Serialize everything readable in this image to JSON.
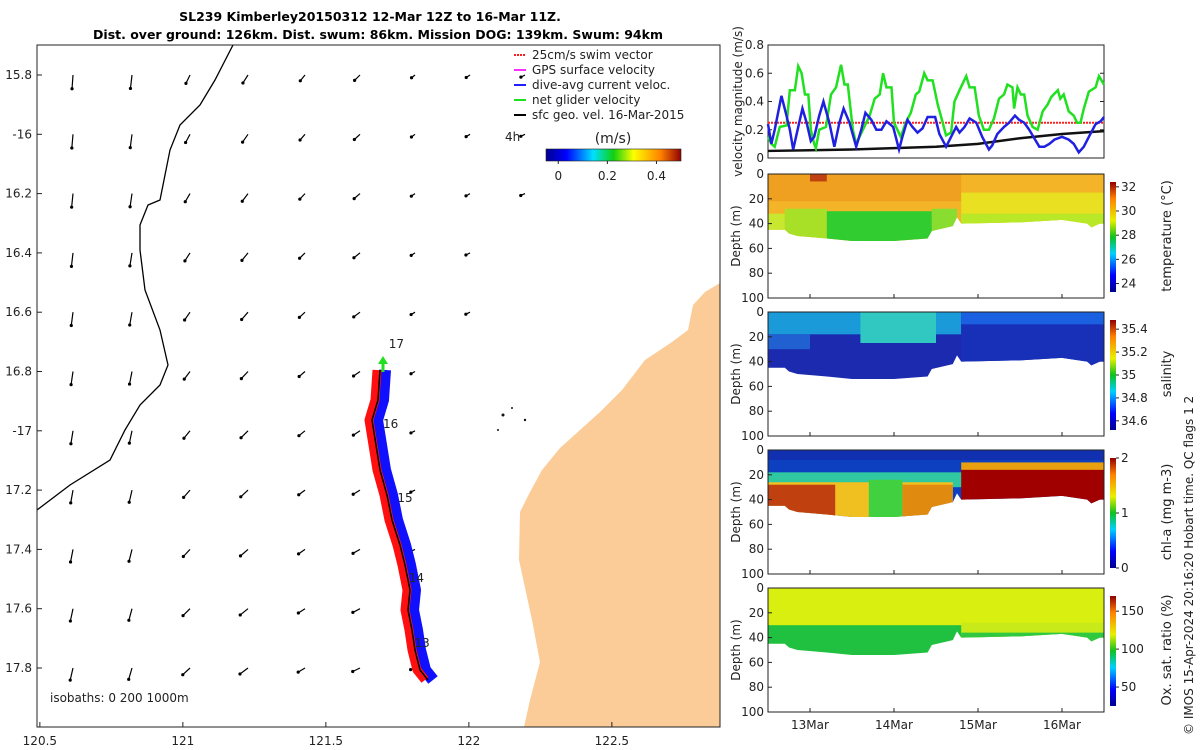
{
  "title": {
    "line1": "SL239 Kimberley20150312 12-Mar 12Z to 16-Mar 11Z.",
    "line2": "Dist. over ground: 126km. Dist. swum: 86km. Mission DOG: 139km. Swum: 94km"
  },
  "map": {
    "lon_ticks": [
      "120.5",
      "121",
      "121.5",
      "122",
      "122.5"
    ],
    "lon_values": [
      120.5,
      121,
      121.5,
      122,
      122.5
    ],
    "lat_ticks": [
      "15.8",
      "-16",
      "16.2",
      "16.4",
      "16.6",
      "16.8",
      "-17",
      "17.2",
      "17.4",
      "17.6",
      "17.8"
    ],
    "lat_values": [
      -15.8,
      -16,
      -16.2,
      -16.4,
      -16.6,
      -16.8,
      -17,
      -17.2,
      -17.4,
      -17.6,
      -17.8
    ],
    "isobaths": "isobaths: 0   200   1000m",
    "day_labels": [
      {
        "text": "17",
        "lon": 121.72,
        "lat": -16.72
      },
      {
        "text": "16",
        "lon": 121.7,
        "lat": -16.99
      },
      {
        "text": "15",
        "lon": 121.75,
        "lat": -17.24
      },
      {
        "text": "14",
        "lon": 121.79,
        "lat": -17.51
      },
      {
        "text": "13",
        "lon": 121.81,
        "lat": -17.73
      }
    ],
    "scale_label": "4h",
    "legend": [
      {
        "label": "25cm/s swim vector",
        "color": "#ff2020"
      },
      {
        "label": "GPS surface velocity",
        "color": "#ff30ff"
      },
      {
        "label": "dive-avg current veloc.",
        "color": "#2020ff"
      },
      {
        "label": "net glider velocity",
        "color": "#20e020"
      },
      {
        "label": "sfc geo. vel. 16-Mar-2015",
        "color": "#000000"
      }
    ],
    "colorbar": {
      "label": "(m/s)",
      "ticks": [
        "0",
        "0.2",
        "0.4"
      ],
      "tick_values": [
        0,
        0.2,
        0.4
      ],
      "range": [
        -0.05,
        0.5
      ]
    },
    "colors": {
      "land": "#fbcc98",
      "track_red": "#ff1010",
      "track_blue": "#1010ff",
      "arrow_green": "#20e020"
    }
  },
  "chart_data": [
    {
      "type": "line",
      "ylabel": "velocity magnitude (m/s)",
      "ylim": [
        0,
        0.8
      ],
      "xlim": [
        12.5,
        16.5
      ],
      "yticks": [
        "0",
        "0.2",
        "0.4",
        "0.6",
        "0.8"
      ],
      "ytick_values": [
        0,
        0.2,
        0.4,
        0.6,
        0.8
      ],
      "series": [
        {
          "name": "net glider velocity",
          "color": "#20e020",
          "x": [
            12.5,
            12.54,
            12.58,
            12.64,
            12.72,
            12.76,
            12.82,
            12.86,
            12.9,
            12.94,
            12.98,
            13.01,
            13.05,
            13.07,
            13.11,
            13.19,
            13.25,
            13.31,
            13.37,
            13.41,
            13.45,
            13.51,
            13.55,
            13.63,
            13.71,
            13.77,
            13.83,
            13.87,
            13.91,
            13.97,
            14.0,
            14.08,
            14.14,
            14.2,
            14.26,
            14.3,
            14.36,
            14.4,
            14.46,
            14.52,
            14.58,
            14.62,
            14.68,
            14.72,
            14.78,
            14.86,
            14.9,
            14.96,
            15.01,
            15.07,
            15.13,
            15.19,
            15.25,
            15.31,
            15.35,
            15.41,
            15.43,
            15.47,
            15.51,
            15.55,
            15.59,
            15.65,
            15.71,
            15.77,
            15.83,
            15.87,
            15.95,
            15.98,
            16.02,
            16.08,
            16.14,
            16.18,
            16.22,
            16.26,
            16.32,
            16.4,
            16.44,
            16.5
          ],
          "y": [
            0.15,
            0.1,
            0.08,
            0.22,
            0.23,
            0.48,
            0.48,
            0.65,
            0.6,
            0.45,
            0.45,
            0.2,
            0.1,
            0.07,
            0.2,
            0.22,
            0.45,
            0.5,
            0.66,
            0.52,
            0.52,
            0.2,
            0.1,
            0.2,
            0.3,
            0.42,
            0.45,
            0.6,
            0.5,
            0.5,
            0.25,
            0.15,
            0.25,
            0.32,
            0.45,
            0.47,
            0.6,
            0.55,
            0.55,
            0.38,
            0.25,
            0.16,
            0.18,
            0.4,
            0.48,
            0.58,
            0.5,
            0.5,
            0.3,
            0.2,
            0.2,
            0.28,
            0.42,
            0.45,
            0.52,
            0.5,
            0.35,
            0.5,
            0.45,
            0.45,
            0.3,
            0.22,
            0.2,
            0.33,
            0.38,
            0.43,
            0.48,
            0.42,
            0.45,
            0.33,
            0.3,
            0.25,
            0.25,
            0.35,
            0.47,
            0.5,
            0.58,
            0.52
          ]
        },
        {
          "name": "dive-avg current veloc.",
          "color": "#2020e0",
          "x": [
            12.5,
            12.54,
            12.58,
            12.66,
            12.72,
            12.76,
            12.8,
            12.86,
            12.91,
            12.96,
            13.01,
            13.05,
            13.11,
            13.16,
            13.23,
            13.29,
            13.35,
            13.4,
            13.47,
            13.55,
            13.61,
            13.66,
            13.73,
            13.79,
            13.85,
            13.91,
            13.99,
            14.06,
            14.1,
            14.16,
            14.22,
            14.28,
            14.34,
            14.4,
            14.49,
            14.54,
            14.62,
            14.68,
            14.74,
            14.78,
            14.84,
            14.9,
            14.98,
            15.05,
            15.13,
            15.17,
            15.23,
            15.31,
            15.37,
            15.44,
            15.49,
            15.55,
            15.61,
            15.67,
            15.73,
            15.79,
            15.85,
            15.91,
            16.0,
            16.08,
            16.14,
            16.2,
            16.26,
            16.32,
            16.4,
            16.46,
            16.5
          ],
          "y": [
            0.24,
            0.1,
            0.2,
            0.44,
            0.3,
            0.2,
            0.06,
            0.22,
            0.35,
            0.25,
            0.12,
            0.15,
            0.3,
            0.4,
            0.25,
            0.08,
            0.25,
            0.35,
            0.25,
            0.08,
            0.2,
            0.32,
            0.27,
            0.2,
            0.2,
            0.26,
            0.22,
            0.06,
            0.15,
            0.27,
            0.22,
            0.18,
            0.21,
            0.29,
            0.29,
            0.17,
            0.08,
            0.15,
            0.22,
            0.18,
            0.22,
            0.28,
            0.25,
            0.15,
            0.06,
            0.09,
            0.17,
            0.22,
            0.25,
            0.3,
            0.27,
            0.25,
            0.2,
            0.14,
            0.08,
            0.08,
            0.1,
            0.13,
            0.15,
            0.13,
            0.1,
            0.04,
            0.08,
            0.15,
            0.24,
            0.26,
            0.29
          ]
        },
        {
          "name": "sfc geo. vel.",
          "color": "#111111",
          "x": [
            12.5,
            13,
            13.5,
            14,
            14.5,
            15,
            15.5,
            16,
            16.5
          ],
          "y": [
            0.05,
            0.055,
            0.06,
            0.07,
            0.08,
            0.1,
            0.14,
            0.17,
            0.19
          ]
        },
        {
          "name": "25cm/s swim vector",
          "color": "#ff2020",
          "dashed": true,
          "x": [
            12.5,
            16.5
          ],
          "y": [
            0.25,
            0.25
          ]
        }
      ]
    },
    {
      "type": "heatmap",
      "variable": "temperature",
      "label": "temperature (°C)",
      "ylabel": "Depth (m)",
      "cbar_ticks": [
        "24",
        "26",
        "28",
        "30",
        "32"
      ],
      "cbar_values": [
        24,
        26,
        28,
        30,
        32
      ],
      "cbar_range": [
        23.3,
        32.4
      ]
    },
    {
      "type": "heatmap",
      "variable": "salinity",
      "label": "salinity",
      "ylabel": "Depth (m)",
      "cbar_ticks": [
        "34.6",
        "34.8",
        "35",
        "35.2",
        "35.4"
      ],
      "cbar_values": [
        34.6,
        34.8,
        35,
        35.2,
        35.4
      ],
      "cbar_range": [
        34.52,
        35.48
      ]
    },
    {
      "type": "heatmap",
      "variable": "chl-a",
      "label": "chl-a (mg m-3)",
      "ylabel": "Depth (m)",
      "cbar_ticks": [
        "0",
        "1",
        "2"
      ],
      "cbar_values": [
        0,
        1,
        2
      ],
      "cbar_range": [
        0,
        2
      ]
    },
    {
      "type": "heatmap",
      "variable": "oxygen",
      "label": "Ox. sat. ratio (%)",
      "ylabel": "Depth (m)",
      "cbar_ticks": [
        "50",
        "100",
        "150"
      ],
      "cbar_values": [
        50,
        100,
        150
      ],
      "cbar_range": [
        25,
        170
      ]
    }
  ],
  "sections": {
    "depth_ticks": [
      "0",
      "20",
      "40",
      "60",
      "80",
      "100"
    ],
    "depth_values": [
      0,
      20,
      40,
      60,
      80,
      100
    ],
    "time_ticks": [
      "13Mar",
      "14Mar",
      "15Mar",
      "16Mar"
    ],
    "time_values": [
      13,
      14,
      15,
      16
    ],
    "bottom_profile": {
      "day": [
        12.5,
        12.7,
        12.75,
        12.85,
        13.2,
        13.5,
        14.0,
        14.4,
        14.45,
        14.7,
        14.75,
        14.8,
        15.5,
        16.0,
        16.3,
        16.35,
        16.45,
        16.5
      ],
      "depth": [
        45,
        45,
        48,
        50,
        52,
        54,
        54,
        52,
        46,
        42,
        35,
        40,
        39,
        37,
        40,
        43,
        40,
        40
      ]
    }
  },
  "footer": "© IMOS 15-Apr-2024 20:16:20 Hobart time. QC flags 1  2"
}
